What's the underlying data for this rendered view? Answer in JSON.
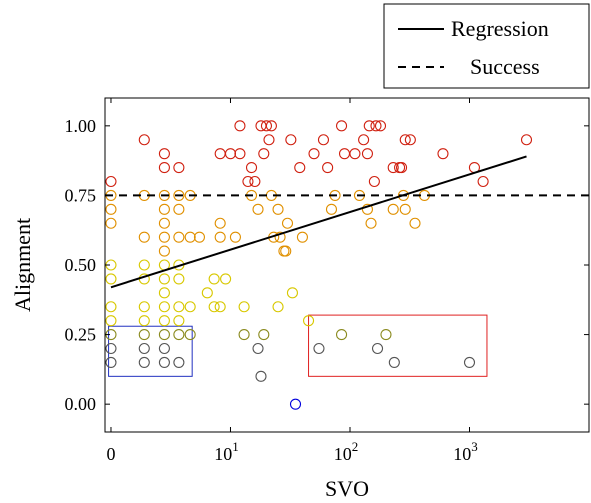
{
  "chart_data": {
    "type": "scatter",
    "xlabel": "SVO",
    "ylabel": "Alignment",
    "x_scale": "symlog",
    "xlim": [
      -0.5,
      10000
    ],
    "ylim": [
      -0.1,
      1.1
    ],
    "x_ticks": [
      {
        "value": 0,
        "label": "0"
      },
      {
        "value": 10,
        "label": "10",
        "exp": "1"
      },
      {
        "value": 100,
        "label": "10",
        "exp": "2"
      },
      {
        "value": 1000,
        "label": "10",
        "exp": "3"
      }
    ],
    "y_ticks": [
      {
        "value": 0.0,
        "label": "0.00"
      },
      {
        "value": 0.25,
        "label": "0.25"
      },
      {
        "value": 0.5,
        "label": "0.50"
      },
      {
        "value": 0.75,
        "label": "0.75"
      },
      {
        "value": 1.0,
        "label": "1.00"
      }
    ],
    "legend": {
      "placement": "top-right (outside)",
      "entries": [
        {
          "label": "Regression",
          "style": "solid"
        },
        {
          "label": "Success",
          "style": "dashed"
        }
      ]
    },
    "series": [
      {
        "name": "Regression",
        "type": "line",
        "style": "solid",
        "points": [
          [
            0,
            0.42
          ],
          [
            3000,
            0.89
          ]
        ]
      },
      {
        "name": "Success",
        "type": "line",
        "style": "dashed",
        "points": [
          [
            -0.5,
            0.75
          ],
          [
            10000,
            0.75
          ]
        ]
      },
      {
        "type": "scatter",
        "marker": "open-circle",
        "color_by": "alignment",
        "colormap": [
          "#0000dd",
          "#555555",
          "#8a8a1e",
          "#d8c800",
          "#e09000",
          "#d02010"
        ],
        "points": [
          [
            0,
            0.8
          ],
          [
            0,
            0.75
          ],
          [
            0,
            0.7
          ],
          [
            0,
            0.65
          ],
          [
            0,
            0.5
          ],
          [
            0,
            0.45
          ],
          [
            0,
            0.35
          ],
          [
            0,
            0.3
          ],
          [
            0,
            0.25
          ],
          [
            0,
            0.2
          ],
          [
            0,
            0.15
          ],
          [
            1,
            0.95
          ],
          [
            1,
            0.75
          ],
          [
            1,
            0.6
          ],
          [
            1,
            0.5
          ],
          [
            1,
            0.45
          ],
          [
            1,
            0.35
          ],
          [
            1,
            0.3
          ],
          [
            1,
            0.25
          ],
          [
            1,
            0.2
          ],
          [
            1,
            0.15
          ],
          [
            2,
            0.9
          ],
          [
            2,
            0.85
          ],
          [
            2,
            0.75
          ],
          [
            2,
            0.7
          ],
          [
            2,
            0.65
          ],
          [
            2,
            0.6
          ],
          [
            2,
            0.55
          ],
          [
            2,
            0.5
          ],
          [
            2,
            0.45
          ],
          [
            2,
            0.4
          ],
          [
            2,
            0.35
          ],
          [
            2,
            0.3
          ],
          [
            2,
            0.25
          ],
          [
            2,
            0.2
          ],
          [
            2,
            0.15
          ],
          [
            3,
            0.85
          ],
          [
            3,
            0.75
          ],
          [
            3,
            0.7
          ],
          [
            3,
            0.6
          ],
          [
            3,
            0.5
          ],
          [
            3,
            0.45
          ],
          [
            3,
            0.35
          ],
          [
            3,
            0.3
          ],
          [
            3,
            0.25
          ],
          [
            3,
            0.15
          ],
          [
            4,
            0.75
          ],
          [
            4,
            0.6
          ],
          [
            4,
            0.35
          ],
          [
            4,
            0.25
          ],
          [
            5,
            0.6
          ],
          [
            6,
            0.4
          ],
          [
            7,
            0.45
          ],
          [
            7,
            0.35
          ],
          [
            8,
            0.9
          ],
          [
            8,
            0.65
          ],
          [
            8,
            0.6
          ],
          [
            8,
            0.35
          ],
          [
            9,
            0.45
          ],
          [
            10,
            0.9
          ],
          [
            11,
            0.6
          ],
          [
            12,
            1.0
          ],
          [
            12,
            0.9
          ],
          [
            13,
            0.35
          ],
          [
            13,
            0.25
          ],
          [
            14,
            0.8
          ],
          [
            15,
            0.85
          ],
          [
            15,
            0.75
          ],
          [
            16,
            0.8
          ],
          [
            17,
            0.7
          ],
          [
            17,
            0.2
          ],
          [
            18,
            1.0
          ],
          [
            18,
            0.1
          ],
          [
            19,
            0.9
          ],
          [
            19,
            0.25
          ],
          [
            20,
            1.0
          ],
          [
            21,
            0.95
          ],
          [
            22,
            1.0
          ],
          [
            22,
            0.75
          ],
          [
            23,
            0.6
          ],
          [
            25,
            0.7
          ],
          [
            25,
            0.35
          ],
          [
            26,
            0.6
          ],
          [
            28,
            0.55
          ],
          [
            29,
            0.55
          ],
          [
            30,
            0.65
          ],
          [
            32,
            0.95
          ],
          [
            33,
            0.4
          ],
          [
            35,
            0.0
          ],
          [
            38,
            0.85
          ],
          [
            40,
            0.6
          ],
          [
            45,
            0.3
          ],
          [
            50,
            0.9
          ],
          [
            55,
            0.2
          ],
          [
            60,
            0.95
          ],
          [
            65,
            0.85
          ],
          [
            70,
            0.7
          ],
          [
            75,
            0.75
          ],
          [
            85,
            1.0
          ],
          [
            85,
            0.25
          ],
          [
            90,
            0.9
          ],
          [
            110,
            0.9
          ],
          [
            120,
            0.75
          ],
          [
            130,
            0.95
          ],
          [
            140,
            0.9
          ],
          [
            140,
            0.7
          ],
          [
            145,
            1.0
          ],
          [
            150,
            0.65
          ],
          [
            160,
            0.8
          ],
          [
            165,
            1.0
          ],
          [
            170,
            0.2
          ],
          [
            180,
            1.0
          ],
          [
            200,
            0.25
          ],
          [
            230,
            0.85
          ],
          [
            230,
            0.7
          ],
          [
            235,
            0.15
          ],
          [
            260,
            0.85
          ],
          [
            270,
            0.85
          ],
          [
            280,
            0.75
          ],
          [
            290,
            0.95
          ],
          [
            290,
            0.7
          ],
          [
            320,
            0.95
          ],
          [
            350,
            0.65
          ],
          [
            420,
            0.75
          ],
          [
            600,
            0.9
          ],
          [
            1000,
            0.15
          ],
          [
            1100,
            0.85
          ],
          [
            1300,
            0.8
          ],
          [
            3000,
            0.95
          ]
        ]
      }
    ],
    "annotations": [
      {
        "shape": "rect",
        "color": "#2030c0",
        "x_range": [
          -0.2,
          4.2
        ],
        "y_range": [
          0.1,
          0.28
        ]
      },
      {
        "shape": "rect",
        "color": "#e02020",
        "x_range": [
          45,
          1400
        ],
        "y_range": [
          0.1,
          0.32
        ]
      }
    ]
  }
}
